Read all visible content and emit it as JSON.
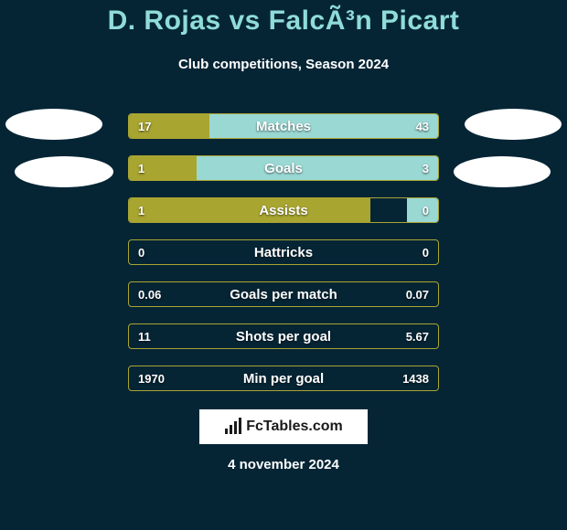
{
  "background_color": "#052535",
  "title": {
    "text": "D. Rojas vs FalcÃ³n Picart",
    "color": "#8fdcd8",
    "fontsize": 30
  },
  "subtitle": {
    "text": "Club competitions, Season 2024",
    "color": "#ffffff",
    "fontsize": 15
  },
  "avatars": {
    "fill": "#ffffff"
  },
  "bars": {
    "track_bg": "#052535",
    "border_color": "#a9a531",
    "left_color": "#a9a531",
    "right_color": "#9ad8d4",
    "label_color": "#ffffff",
    "value_color": "#ffffff",
    "label_fontsize": 15,
    "value_fontsize": 13,
    "rows": [
      {
        "label": "Matches",
        "left_val": "17",
        "right_val": "43",
        "left_pct": 26,
        "right_pct": 74
      },
      {
        "label": "Goals",
        "left_val": "1",
        "right_val": "3",
        "left_pct": 22,
        "right_pct": 78
      },
      {
        "label": "Assists",
        "left_val": "1",
        "right_val": "0",
        "left_pct": 78,
        "right_pct": 10
      },
      {
        "label": "Hattricks",
        "left_val": "0",
        "right_val": "0",
        "left_pct": 0,
        "right_pct": 0
      },
      {
        "label": "Goals per match",
        "left_val": "0.06",
        "right_val": "0.07",
        "left_pct": 0,
        "right_pct": 0
      },
      {
        "label": "Shots per goal",
        "left_val": "11",
        "right_val": "5.67",
        "left_pct": 0,
        "right_pct": 0
      },
      {
        "label": "Min per goal",
        "left_val": "1970",
        "right_val": "1438",
        "left_pct": 0,
        "right_pct": 0
      }
    ]
  },
  "branding": {
    "text": "FcTables.com",
    "bg": "#ffffff",
    "border": "#0a2a3a",
    "text_color": "#1a1a1a",
    "icon_color": "#1a1a1a"
  },
  "date": {
    "text": "4 november 2024",
    "color": "#ffffff",
    "fontsize": 15
  }
}
